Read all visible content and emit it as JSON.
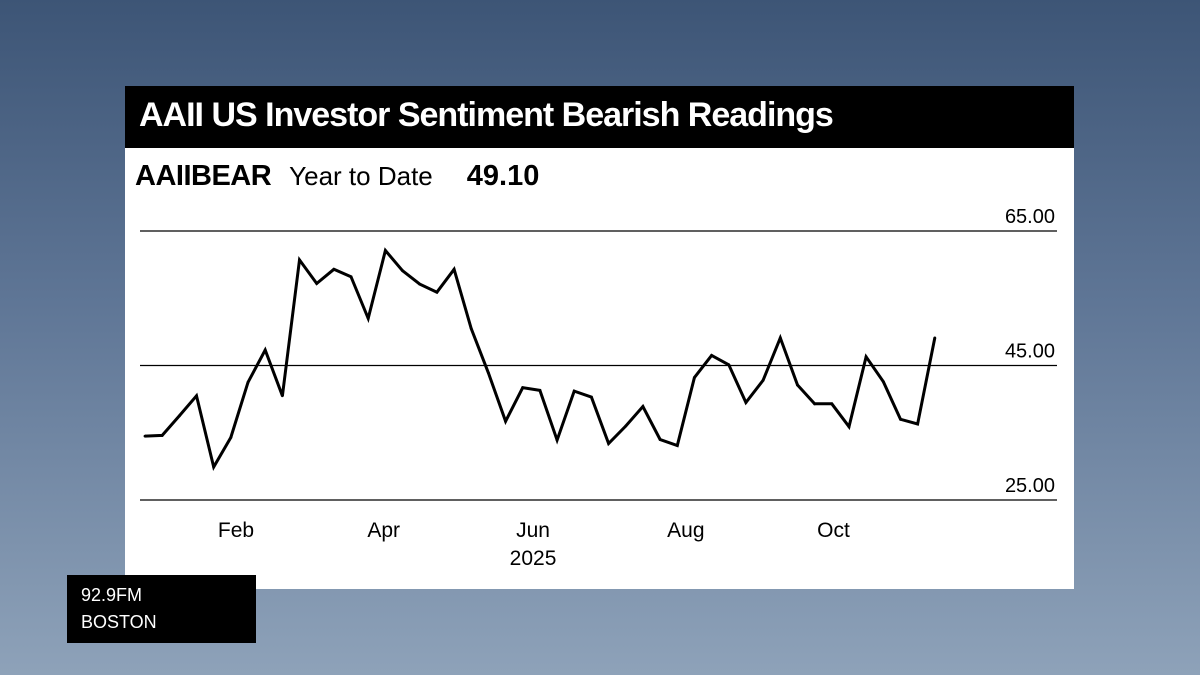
{
  "title": "AAII US Investor Sentiment Bearish Readings",
  "ticker": "AAIIBEAR",
  "period": "Year to Date",
  "last_value": "49.10",
  "badge": {
    "line1": "92.9FM",
    "line2": "BOSTON"
  },
  "colors": {
    "line": "#000000",
    "card": "#ffffff",
    "title_bar": "#000000"
  },
  "chart_data": {
    "type": "line",
    "title": "AAII US Investor Sentiment Bearish Readings",
    "ylim": [
      25,
      65
    ],
    "yticks": [
      {
        "value": 25,
        "label": "25.00"
      },
      {
        "value": 45,
        "label": "45.00"
      },
      {
        "value": 65,
        "label": "65.00"
      }
    ],
    "xlim": [
      0,
      53
    ],
    "xticks": [
      {
        "value": 5.3,
        "label": "Feb"
      },
      {
        "value": 13.9,
        "label": "Apr"
      },
      {
        "value": 22.6,
        "label": "Jun"
      },
      {
        "value": 31.5,
        "label": "Aug"
      },
      {
        "value": 40.1,
        "label": "Oct"
      }
    ],
    "year_label": {
      "value": 22.6,
      "label": "2025"
    },
    "gridlines": [
      25,
      45,
      65
    ],
    "series": [
      {
        "name": "AAIIBEAR",
        "x": [
          0.0,
          1.0,
          2.0,
          3.0,
          4.0,
          5.0,
          6.0,
          7.0,
          8.0,
          9.0,
          10.0,
          11.0,
          12.0,
          13.0,
          14.0,
          15.0,
          16.0,
          17.0,
          18.0,
          19.0,
          20.0,
          21.0,
          22.0,
          23.0,
          24.0,
          25.0,
          26.0,
          27.0,
          28.0,
          29.0,
          30.0,
          31.0,
          32.0,
          33.0,
          34.0,
          35.0,
          36.0,
          37.0,
          38.0,
          39.0,
          40.0,
          41.0,
          42.0,
          43.0,
          44.0,
          45.0,
          46.0
        ],
        "values": [
          34.5,
          34.6,
          37.5,
          40.5,
          29.9,
          34.3,
          42.5,
          47.3,
          40.5,
          60.7,
          57.2,
          59.3,
          58.2,
          52.0,
          62.1,
          59.1,
          57.1,
          55.9,
          59.3,
          50.5,
          43.9,
          36.7,
          41.7,
          41.3,
          33.9,
          41.2,
          40.3,
          33.4,
          36.0,
          38.9,
          34.0,
          33.1,
          43.2,
          46.5,
          45.1,
          39.5,
          42.8,
          49.1,
          42.1,
          39.3,
          39.3,
          35.9,
          46.3,
          42.6,
          37.0,
          36.3,
          49.1
        ]
      }
    ]
  }
}
